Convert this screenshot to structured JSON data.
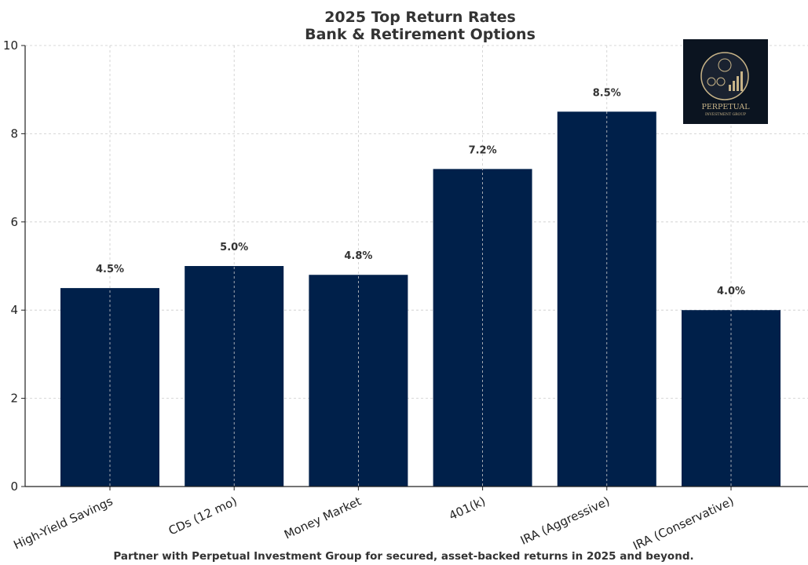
{
  "chart_data": {
    "type": "bar",
    "title_lines": [
      "2025 Top Return Rates",
      "Bank & Retirement Options"
    ],
    "categories": [
      "High-Yield Savings",
      "CDs (12 mo)",
      "Money Market",
      "401(k)",
      "IRA (Aggressive)",
      "IRA (Conservative)"
    ],
    "values": [
      4.5,
      5.0,
      4.8,
      7.2,
      8.5,
      4.0
    ],
    "data_labels": [
      "4.5%",
      "5.0%",
      "4.8%",
      "7.2%",
      "8.5%",
      "4.0%"
    ],
    "ylim": [
      0,
      10
    ],
    "yticks": [
      0,
      2,
      4,
      6,
      8,
      10
    ],
    "bar_color": "#00204a",
    "grid": true,
    "footer": "Partner with Perpetual Investment Group for secured, asset-backed returns in 2025 and beyond."
  },
  "logo": {
    "name": "PERPETUAL",
    "tagline": "INVESTMENT GROUP",
    "background": "#0b1420",
    "accent": "#c8b488"
  }
}
